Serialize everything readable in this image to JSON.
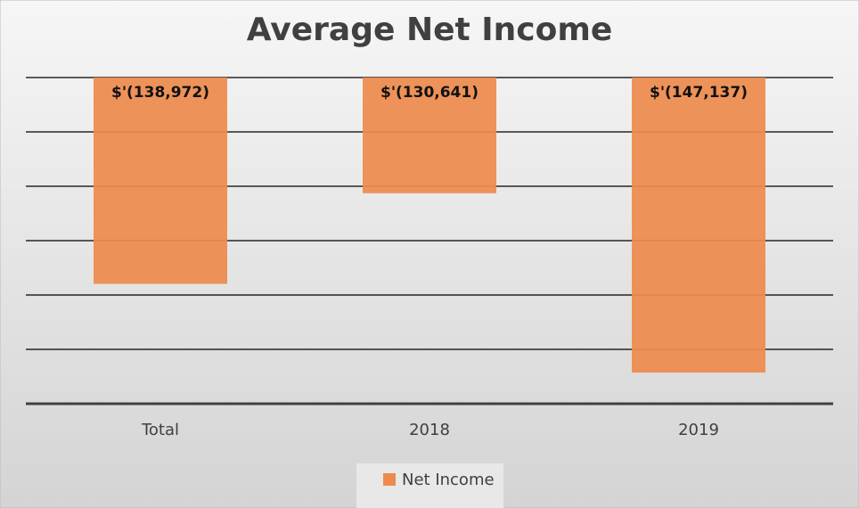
{
  "chart_data": {
    "type": "bar",
    "title": "Average Net Income",
    "categories": [
      "Total",
      "2018",
      "2019"
    ],
    "series": [
      {
        "name": "Net Income",
        "color": "#ed8b4c",
        "values": [
          -138972,
          -130641,
          -147137
        ],
        "value_labels": [
          "$'(138,972)",
          "$'(130,641)",
          "$'(147,137)"
        ]
      }
    ],
    "ylim": [
      -150000,
      -120000
    ],
    "yticks": [
      -150000,
      -145000,
      -140000,
      -135000,
      -130000,
      -125000,
      -120000
    ],
    "grid": true
  }
}
